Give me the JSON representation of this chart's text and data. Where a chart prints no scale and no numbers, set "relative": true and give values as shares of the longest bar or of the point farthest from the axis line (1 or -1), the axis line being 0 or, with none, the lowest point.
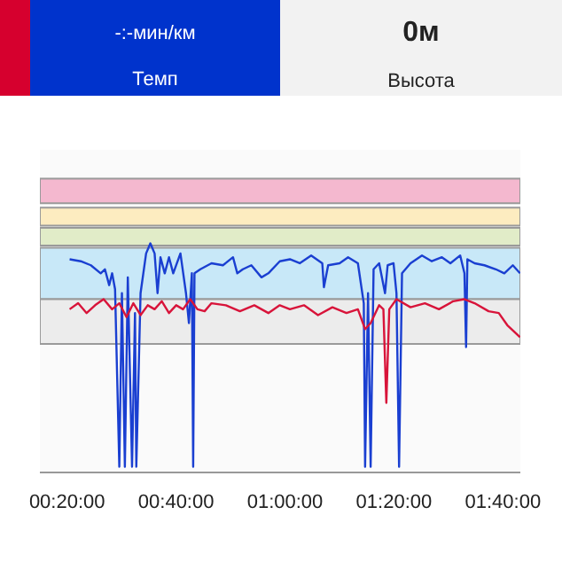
{
  "chart_data": {
    "type": "line",
    "relative": true,
    "annotations": [
      "-:-мин/км",
      "Темп",
      "0м",
      "Высота"
    ],
    "xlim": [
      0.25,
      1.72
    ],
    "xticks": [
      {
        "value": 0.3333,
        "label": "00:20:00"
      },
      {
        "value": 0.6667,
        "label": "00:40:00"
      },
      {
        "value": 1.0,
        "label": "01:00:00"
      },
      {
        "value": 1.3333,
        "label": "01:20:00"
      },
      {
        "value": 1.6667,
        "label": "01:40:00"
      }
    ],
    "tick_labels": "x",
    "grid": false,
    "line_style": "solid",
    "bands": [
      {
        "axis": "y",
        "from": 1.18,
        "to": 1.29,
        "label": null,
        "color": "#f4b8cf"
      },
      {
        "axis": "y",
        "from": 1.08,
        "to": 1.16,
        "label": null,
        "color": "#fdecc0"
      },
      {
        "axis": "y",
        "from": 0.99,
        "to": 1.07,
        "label": null,
        "color": "#e1ecc8"
      },
      {
        "axis": "y",
        "from": 0.75,
        "to": 0.98,
        "label": null,
        "color": "#c8e8f8"
      },
      {
        "axis": "y",
        "from": 0.55,
        "to": 0.75,
        "label": null,
        "color": "#ececec"
      }
    ],
    "series": [
      {
        "color": "#1a3fd1",
        "x": [
          0.341,
          0.375,
          0.406,
          0.436,
          0.449,
          0.462,
          0.471,
          0.48,
          0.493,
          0.501,
          0.51,
          0.519,
          0.532,
          0.541,
          0.545,
          0.558,
          0.575,
          0.588,
          0.601,
          0.61,
          0.619,
          0.632,
          0.645,
          0.658,
          0.68,
          0.697,
          0.706,
          0.715,
          0.719,
          0.723,
          0.741,
          0.775,
          0.81,
          0.841,
          0.854,
          0.871,
          0.897,
          0.928,
          0.949,
          0.984,
          1.015,
          1.045,
          1.08,
          1.114,
          1.119,
          1.132,
          1.167,
          1.193,
          1.223,
          1.241,
          1.245,
          1.254,
          1.262,
          1.271,
          1.288,
          1.306,
          1.314,
          1.332,
          1.341,
          1.349,
          1.358,
          1.384,
          1.419,
          1.449,
          1.48,
          1.506,
          1.536,
          1.549,
          1.554,
          1.558,
          1.58,
          1.61,
          1.645,
          1.671,
          1.697,
          1.719
        ],
        "values": [
          0.929,
          0.92,
          0.902,
          0.866,
          0.884,
          0.813,
          0.866,
          0.795,
          0,
          0.777,
          0,
          0.848,
          0,
          0.688,
          0,
          0.777,
          0.955,
          1.0,
          0.955,
          0.777,
          0.938,
          0.866,
          0.938,
          0.866,
          0.955,
          0.777,
          0.643,
          0.866,
          0,
          0.866,
          0.884,
          0.911,
          0.902,
          0.938,
          0.866,
          0.884,
          0.902,
          0.848,
          0.866,
          0.92,
          0.929,
          0.911,
          0.946,
          0.911,
          0.804,
          0.902,
          0.911,
          0.938,
          0.911,
          0.732,
          0,
          0.777,
          0,
          0.884,
          0.911,
          0.777,
          0.902,
          0.911,
          0.777,
          0,
          0.866,
          0.911,
          0.946,
          0.92,
          0.938,
          0.911,
          0.946,
          0.866,
          0.536,
          0.929,
          0.911,
          0.902,
          0.884,
          0.866,
          0.902,
          0.866
        ]
      },
      {
        "color": "#d8143a",
        "x": [
          0.341,
          0.367,
          0.393,
          0.419,
          0.445,
          0.471,
          0.493,
          0.515,
          0.536,
          0.558,
          0.58,
          0.601,
          0.623,
          0.645,
          0.667,
          0.688,
          0.71,
          0.732,
          0.754,
          0.775,
          0.819,
          0.862,
          0.906,
          0.949,
          0.984,
          1.015,
          1.058,
          1.101,
          1.145,
          1.188,
          1.223,
          1.245,
          1.262,
          1.288,
          1.301,
          1.31,
          1.319,
          1.341,
          1.384,
          1.428,
          1.471,
          1.515,
          1.549,
          1.58,
          1.623,
          1.654,
          1.68,
          1.719
        ],
        "values": [
          0.705,
          0.732,
          0.688,
          0.723,
          0.75,
          0.705,
          0.732,
          0.67,
          0.732,
          0.679,
          0.723,
          0.705,
          0.741,
          0.688,
          0.723,
          0.705,
          0.75,
          0.705,
          0.696,
          0.732,
          0.723,
          0.696,
          0.723,
          0.688,
          0.723,
          0.705,
          0.723,
          0.679,
          0.714,
          0.688,
          0.705,
          0.616,
          0.643,
          0.723,
          0.705,
          0.286,
          0.705,
          0.75,
          0.714,
          0.732,
          0.705,
          0.741,
          0.75,
          0.732,
          0.696,
          0.688,
          0.634,
          0.58
        ]
      }
    ]
  }
}
